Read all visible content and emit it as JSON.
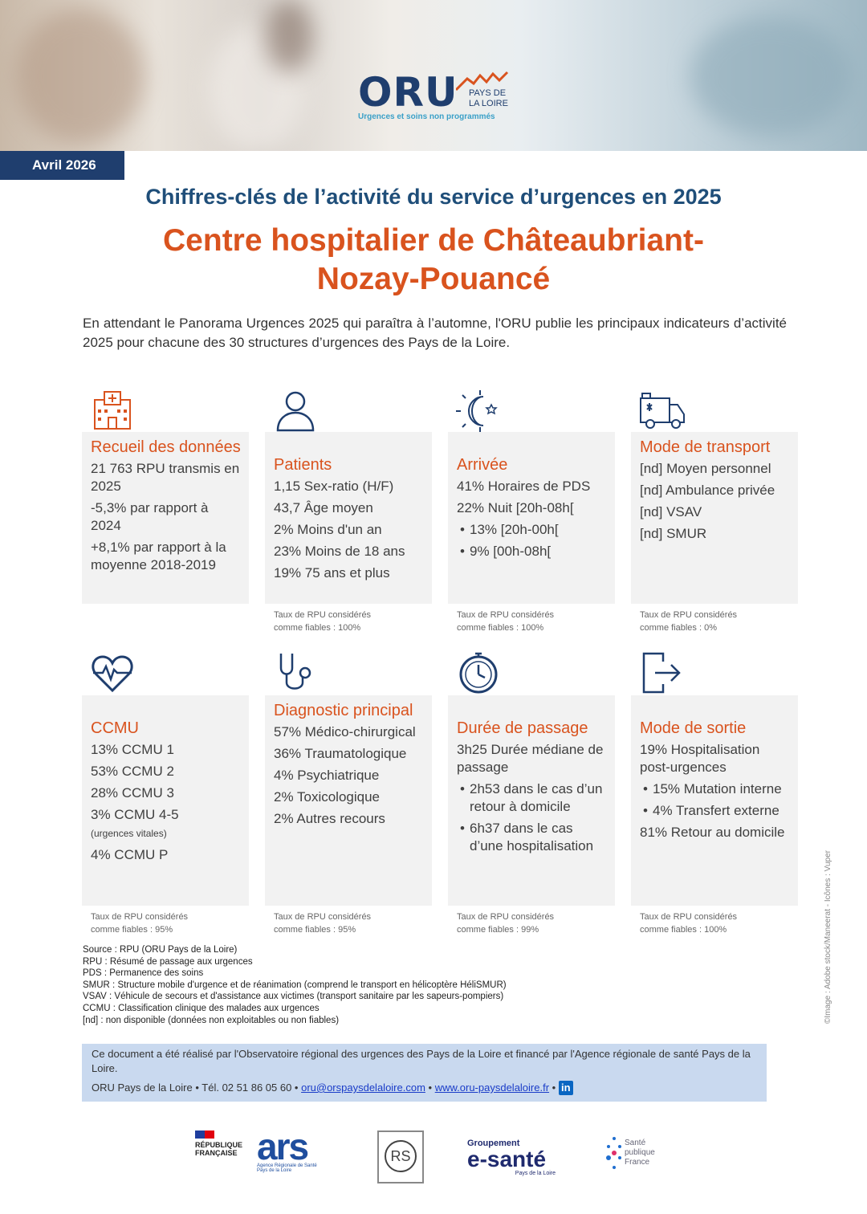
{
  "header": {
    "logo_text": "ORU",
    "logo_region": "PAYS DE LA LOIRE",
    "logo_tagline": "Urgences et soins non programmés",
    "date": "Avril 2026"
  },
  "title": "Chiffres-clés de l’activité du service d’urgences en 2025",
  "hospital_line1": "Centre hospitalier de Châteaubriant-",
  "hospital_line2": "Nozay-Pouancé",
  "intro": "En attendant le Panorama Urgences 2025 qui paraîtra à l’automne, l'ORU publie les principaux indicateurs d’activité 2025 pour chacune des 30 structures d’urgences des Pays de la Loire.",
  "colors": {
    "navy": "#1f3e6e",
    "orange": "#d9531e",
    "card_bg": "#f2f2f2",
    "contact_bg": "#c9d9ef"
  },
  "cards": [
    {
      "icon": "hospital-icon",
      "title": "Recueil des données",
      "lines": [
        "21 763 RPU transmis en 2025",
        "-5,3% par rapport à 2024",
        "+8,1% par rapport à la moyenne 2018-2019"
      ],
      "footer": ""
    },
    {
      "icon": "user-icon",
      "title": "Patients",
      "lines": [
        "1,15 Sex-ratio (H/F)",
        "43,7 Âge moyen",
        "2% Moins d'un an",
        "23% Moins de 18 ans",
        "19% 75 ans et plus"
      ],
      "footer": "Taux de RPU considérés comme fiables : 100%"
    },
    {
      "icon": "sun-moon-icon",
      "title": "Arrivée",
      "lines": [
        "41% Horaires de PDS",
        "22% Nuit [20h-08h[",
        "13% [20h-00h[",
        "9% [00h-08h["
      ],
      "footer": "Taux de RPU considérés comme fiables : 100%"
    },
    {
      "icon": "ambulance-icon",
      "title": "Mode de transport",
      "lines": [
        "[nd] Moyen personnel",
        "[nd] Ambulance privée",
        "[nd] VSAV",
        "[nd] SMUR"
      ],
      "footer": "Taux de RPU considérés comme fiables : 0%"
    },
    {
      "icon": "heartbeat-icon",
      "title": "CCMU",
      "lines": [
        "13% CCMU 1",
        "53% CCMU 2",
        "28% CCMU 3",
        "3% CCMU 4-5",
        "(urgences vitales)",
        "4% CCMU P"
      ],
      "footer": "Taux de RPU considérés comme fiables : 95%"
    },
    {
      "icon": "stethoscope-icon",
      "title": "Diagnostic principal",
      "lines": [
        "57% Médico-chirurgical",
        "36% Traumatologique",
        "4% Psychiatrique",
        "2% Toxicologique",
        "2% Autres recours"
      ],
      "footer": "Taux de RPU considérés comme fiables : 95%"
    },
    {
      "icon": "stopwatch-icon",
      "title": "Durée de passage",
      "lines": [
        "3h25 Durée médiane de passage",
        "2h53 dans le cas d’un retour à domicile",
        "6h37 dans le cas d’une hospitalisation"
      ],
      "footer": "Taux de RPU considérés comme fiables : 99%"
    },
    {
      "icon": "exit-icon",
      "title": "Mode de sortie",
      "lines": [
        "19% Hospitalisation post-urgences",
        "15% Mutation interne",
        "4% Transfert externe",
        "81% Retour au domicile"
      ],
      "footer": "Taux de RPU considérés comme fiables : 100%"
    }
  ],
  "notes": [
    "Source : RPU (ORU Pays de la Loire)",
    "RPU : Résumé de passage aux urgences",
    "PDS : Permanence des soins",
    "SMUR : Structure mobile d'urgence et de réanimation (comprend le transport en hélicoptère HéliSMUR)",
    "VSAV : Véhicule de secours et d'assistance aux victimes (transport sanitaire par les sapeurs-pompiers)",
    "CCMU : Classification clinique des malades aux urgences",
    "[nd] : non disponible (données non exploitables ou non fiables)"
  ],
  "contact": {
    "text": "Ce document a été réalisé par l'Observatoire régional des urgences des Pays de la Loire et financé par l'Agence régionale de santé Pays de la Loire.",
    "org": "ORU Pays de la Loire",
    "tel": "Tél. 02 51 86 05 60",
    "email": "oru@orspaysdelaloire.com",
    "web": "www.oru-paysdelaloire.fr",
    "linkedin": "in"
  },
  "credit": "©Image : Adobe stock/Maneerat - Icônes : Vuper",
  "logos": {
    "rf": "RÉPUBLIQUE FRANÇAISE",
    "ars": "ars",
    "ars_sub": "Agence Régionale de Santé Pays de la Loire",
    "ors": "RS",
    "esante_top": "Groupement",
    "esante": "e-santé",
    "esante_sub": "Pays de la Loire",
    "spf": "Santé publique France"
  }
}
